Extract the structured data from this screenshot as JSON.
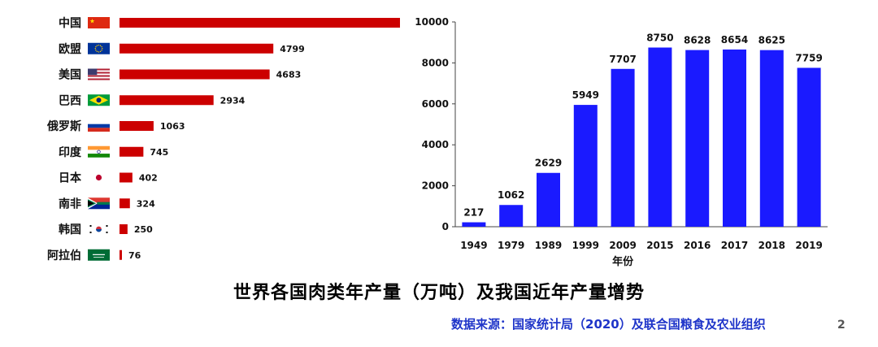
{
  "title": "世界各国肉类年产量（万吨）及我国近年产量增势",
  "source": "数据来源：国家统计局（2020）及联合国粮食及农业组织",
  "page_number": "2",
  "colors": {
    "left_bars": "#cc0000",
    "right_bars": "#1a1aff",
    "source_text": "#1f35c9"
  },
  "chart_data": [
    {
      "type": "bar",
      "orientation": "horizontal",
      "categories": [
        "中国",
        "欧盟",
        "美国",
        "巴西",
        "俄罗斯",
        "印度",
        "日本",
        "南非",
        "韩国",
        "阿拉伯"
      ],
      "flag_icons": [
        "china-flag-icon",
        "eu-flag-icon",
        "usa-flag-icon",
        "brazil-flag-icon",
        "russia-flag-icon",
        "india-flag-icon",
        "japan-flag-icon",
        "south-africa-flag-icon",
        "korea-flag-icon",
        "saudi-arabia-flag-icon"
      ],
      "values": [
        8750,
        4799,
        4683,
        2934,
        1063,
        745,
        402,
        324,
        250,
        76
      ],
      "value_labels": [
        "",
        "4799",
        "4683",
        "2934",
        "1063",
        "745",
        "402",
        "324",
        "250",
        "76"
      ],
      "grid": false
    },
    {
      "type": "bar",
      "orientation": "vertical",
      "categories": [
        "1949",
        "1979",
        "1989",
        "1999",
        "2009",
        "2015",
        "2016",
        "2017",
        "2018",
        "2019"
      ],
      "values": [
        217,
        1062,
        2629,
        5949,
        7707,
        8750,
        8628,
        8654,
        8625,
        7759
      ],
      "xlabel": "年份",
      "ylim": [
        0,
        10000
      ],
      "yticks": [
        "0",
        "2000",
        "4000",
        "6000",
        "8000",
        "10000"
      ],
      "grid": false
    }
  ]
}
